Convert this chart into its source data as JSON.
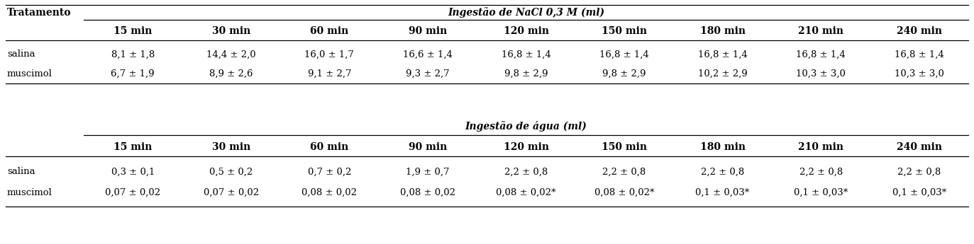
{
  "title_nacl": "Ingestão de NaCl 0,3 M (ml)",
  "title_agua": "Ingestão de água (ml)",
  "col_header": "Tratamento",
  "time_cols": [
    "15 min",
    "30 min",
    "60 min",
    "90 min",
    "120 min",
    "150 min",
    "180 min",
    "210 min",
    "240 min"
  ],
  "nacl_rows": {
    "salina": [
      "8,1 ± 1,8",
      "14,4 ± 2,0",
      "16,0 ± 1,7",
      "16,6 ± 1,4",
      "16,8 ± 1,4",
      "16,8 ± 1,4",
      "16,8 ± 1,4",
      "16,8 ± 1,4",
      "16,8 ± 1,4"
    ],
    "muscimol": [
      "6,7 ± 1,9",
      "8,9 ± 2,6",
      "9,1 ± 2,7",
      "9,3 ± 2,7",
      "9,8 ± 2,9",
      "9,8 ± 2,9",
      "10,2 ± 2,9",
      "10,3 ± 3,0",
      "10,3 ± 3,0"
    ]
  },
  "agua_rows": {
    "salina": [
      "0,3 ± 0,1",
      "0,5 ± 0,2",
      "0,7 ± 0,2",
      "1,9 ± 0,7",
      "2,2 ± 0,8",
      "2,2 ± 0,8",
      "2,2 ± 0,8",
      "2,2 ± 0,8",
      "2,2 ± 0,8"
    ],
    "muscimol": [
      "0,07 ± 0,02",
      "0,07 ± 0,02",
      "0,08 ± 0,02",
      "0,08 ± 0,02",
      "0,08 ± 0,02*",
      "0,08 ± 0,02*",
      "0,1 ± 0,03*",
      "0,1 ± 0,03*",
      "0,1 ± 0,03*"
    ]
  },
  "bg_color": "#ffffff",
  "text_color": "#000000",
  "header_fontsize": 10,
  "cell_fontsize": 9.5,
  "row_label_fontsize": 9.5,
  "fig_width": 13.73,
  "fig_height": 3.45,
  "dpi": 100
}
